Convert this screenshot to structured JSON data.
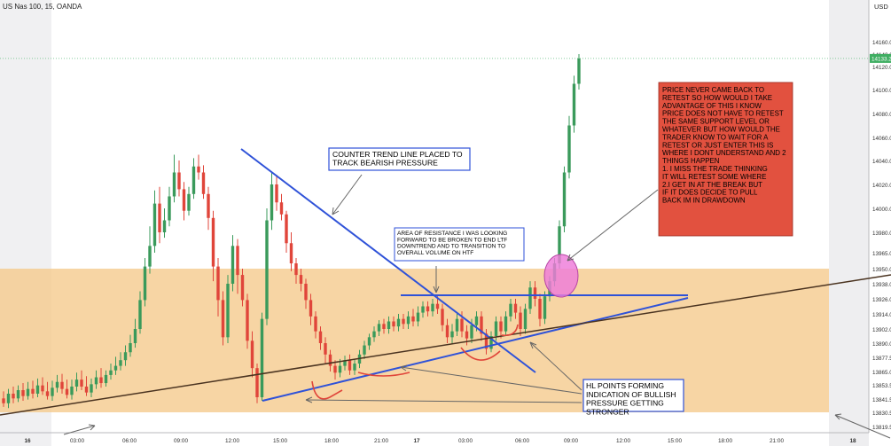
{
  "chart_data": {
    "type": "candlestick",
    "symbol": "US Nas 100, 15, OANDA",
    "currency": "USD",
    "current_price": "14133.2",
    "y_ticks": [
      "14160.0",
      "14140.0",
      "14120.0",
      "14100.0",
      "14080.0",
      "14060.0",
      "14040.0",
      "14020.0",
      "14000.0",
      "13980.0",
      "13965.0",
      "13950.0",
      "13938.0",
      "13926.0",
      "13914.0",
      "13902.0",
      "13890.0",
      "13877.5",
      "13865.0",
      "13853.5",
      "13841.5",
      "13830.5",
      "13819.5"
    ],
    "x_ticks": [
      "16",
      "03:00",
      "06:00",
      "09:00",
      "12:00",
      "15:00",
      "18:00",
      "21:00",
      "17",
      "03:00",
      "06:00",
      "09:00",
      "12:00",
      "15:00",
      "18:00",
      "21:00",
      "18"
    ],
    "candles": [
      [
        13842,
        13838,
        13848,
        13835
      ],
      [
        13838,
        13846,
        13850,
        13834
      ],
      [
        13846,
        13842,
        13852,
        13838
      ],
      [
        13842,
        13849,
        13853,
        13839
      ],
      [
        13849,
        13844,
        13855,
        13840
      ],
      [
        13844,
        13850,
        13856,
        13841
      ],
      [
        13850,
        13846,
        13857,
        13842
      ],
      [
        13846,
        13853,
        13859,
        13843
      ],
      [
        13853,
        13848,
        13860,
        13845
      ],
      [
        13848,
        13844,
        13856,
        13841
      ],
      [
        13844,
        13851,
        13857,
        13840
      ],
      [
        13851,
        13856,
        13862,
        13847
      ],
      [
        13856,
        13850,
        13863,
        13846
      ],
      [
        13850,
        13845,
        13858,
        13842
      ],
      [
        13845,
        13852,
        13858,
        13841
      ],
      [
        13852,
        13858,
        13864,
        13848
      ],
      [
        13858,
        13852,
        13866,
        13849
      ],
      [
        13852,
        13847,
        13861,
        13844
      ],
      [
        13847,
        13854,
        13859,
        13843
      ],
      [
        13854,
        13860,
        13866,
        13850
      ],
      [
        13860,
        13855,
        13868,
        13851
      ],
      [
        13855,
        13862,
        13866,
        13852
      ],
      [
        13862,
        13866,
        13872,
        13858
      ],
      [
        13866,
        13870,
        13878,
        13862
      ],
      [
        13870,
        13875,
        13882,
        13866
      ],
      [
        13875,
        13882,
        13888,
        13870
      ],
      [
        13882,
        13890,
        13897,
        13878
      ],
      [
        13890,
        13902,
        13910,
        13886
      ],
      [
        13902,
        13925,
        13932,
        13898
      ],
      [
        13925,
        13952,
        13960,
        13920
      ],
      [
        13952,
        13970,
        13985,
        13946
      ],
      [
        13970,
        14004,
        14015,
        13965
      ],
      [
        14004,
        13980,
        14018,
        13972
      ],
      [
        13980,
        13990,
        14000,
        13976
      ],
      [
        13990,
        14010,
        14018,
        13985
      ],
      [
        14010,
        14030,
        14045,
        14005
      ],
      [
        14030,
        14016,
        14040,
        14010
      ],
      [
        14016,
        13998,
        14022,
        13990
      ],
      [
        13998,
        14012,
        14018,
        13994
      ],
      [
        14012,
        14035,
        14042,
        14008
      ],
      [
        14035,
        14030,
        14045,
        14024
      ],
      [
        14030,
        14012,
        14036,
        14008
      ],
      [
        14012,
        13992,
        14018,
        13982
      ],
      [
        13992,
        13952,
        13998,
        13940
      ],
      [
        13952,
        13925,
        13960,
        13912
      ],
      [
        13925,
        13895,
        13932,
        13888
      ],
      [
        13895,
        13938,
        13945,
        13890
      ],
      [
        13938,
        13970,
        13978,
        13932
      ],
      [
        13970,
        13945,
        13975,
        13930
      ],
      [
        13945,
        13925,
        13950,
        13920
      ],
      [
        13925,
        13892,
        13930,
        13885
      ],
      [
        13892,
        13868,
        13900,
        13860
      ],
      [
        13868,
        13843,
        13872,
        13838
      ],
      [
        13843,
        13910,
        13915,
        13840
      ],
      [
        13910,
        13990,
        14000,
        13905
      ],
      [
        13990,
        14020,
        14030,
        13982
      ],
      [
        14020,
        14005,
        14028,
        13998
      ],
      [
        14005,
        13995,
        14012,
        13990
      ],
      [
        13995,
        13972,
        13998,
        13965
      ],
      [
        13972,
        13955,
        13980,
        13948
      ],
      [
        13955,
        13945,
        13960,
        13938
      ],
      [
        13945,
        13938,
        13950,
        13932
      ],
      [
        13938,
        13925,
        13942,
        13918
      ],
      [
        13925,
        13912,
        13930,
        13905
      ],
      [
        13912,
        13900,
        13916,
        13894
      ],
      [
        13900,
        13890,
        13904,
        13884
      ],
      [
        13890,
        13880,
        13895,
        13872
      ],
      [
        13880,
        13870,
        13884,
        13865
      ],
      [
        13870,
        13864,
        13875,
        13858
      ],
      [
        13864,
        13870,
        13876,
        13860
      ],
      [
        13870,
        13875,
        13879,
        13866
      ],
      [
        13875,
        13866,
        13880,
        13862
      ],
      [
        13866,
        13872,
        13876,
        13862
      ],
      [
        13872,
        13880,
        13884,
        13868
      ],
      [
        13880,
        13888,
        13892,
        13876
      ],
      [
        13888,
        13895,
        13898,
        13884
      ],
      [
        13895,
        13900,
        13904,
        13891
      ],
      [
        13900,
        13906,
        13909,
        13896
      ],
      [
        13906,
        13902,
        13910,
        13898
      ],
      [
        13902,
        13908,
        13912,
        13898
      ],
      [
        13908,
        13904,
        13912,
        13900
      ],
      [
        13904,
        13910,
        13914,
        13900
      ],
      [
        13910,
        13906,
        13914,
        13902
      ],
      [
        13906,
        13912,
        13916,
        13902
      ],
      [
        13912,
        13908,
        13918,
        13904
      ],
      [
        13908,
        13915,
        13920,
        13904
      ],
      [
        13915,
        13920,
        13924,
        13911
      ],
      [
        13920,
        13916,
        13924,
        13912
      ],
      [
        13916,
        13922,
        13926,
        13912
      ],
      [
        13922,
        13918,
        13928,
        13914
      ],
      [
        13918,
        13905,
        13922,
        13900
      ],
      [
        13905,
        13895,
        13910,
        13890
      ],
      [
        13895,
        13900,
        13906,
        13889
      ],
      [
        13900,
        13910,
        13914,
        13896
      ],
      [
        13910,
        13900,
        13916,
        13895
      ],
      [
        13900,
        13894,
        13905,
        13888
      ],
      [
        13894,
        13905,
        13910,
        13890
      ],
      [
        13905,
        13912,
        13916,
        13900
      ],
      [
        13912,
        13898,
        13916,
        13892
      ],
      [
        13898,
        13885,
        13902,
        13880
      ],
      [
        13885,
        13896,
        13900,
        13882
      ],
      [
        13896,
        13908,
        13912,
        13892
      ],
      [
        13908,
        13900,
        13912,
        13894
      ],
      [
        13900,
        13912,
        13916,
        13896
      ],
      [
        13912,
        13922,
        13926,
        13908
      ],
      [
        13922,
        13915,
        13926,
        13910
      ],
      [
        13915,
        13902,
        13920,
        13896
      ],
      [
        13902,
        13918,
        13922,
        13898
      ],
      [
        13918,
        13935,
        13940,
        13914
      ],
      [
        13935,
        13926,
        13940,
        13920
      ],
      [
        13926,
        13910,
        13930,
        13904
      ],
      [
        13910,
        13928,
        13932,
        13906
      ],
      [
        13928,
        13940,
        13944,
        13924
      ],
      [
        13940,
        13955,
        13960,
        13936
      ],
      [
        13955,
        13985,
        13990,
        13950
      ],
      [
        13985,
        14030,
        14035,
        13980
      ],
      [
        14030,
        14070,
        14078,
        14025
      ],
      [
        14070,
        14105,
        14112,
        14064
      ],
      [
        14105,
        14133,
        14140,
        14100
      ]
    ],
    "levels": [
      {
        "name": "resistance-level",
        "value": 13926
      }
    ],
    "annotations": [
      "COUNTER TREND LINE PLACED TO TRACK BEARISH PRESSURE",
      "AREA OF RESISTANCE I WAS LOOKING FORWARD TO BE BROKEN TO END LTF DOWNTREND AND TO TRANSITION TO OVERALL VOLUME ON HTF",
      "HL POINTS FORMING INDICATION OF BULLISH PRESSURE GETTING STRONGER",
      "PRICE NEVER CAME BACK TO RETEST SO HOW WOULD I TAKE ADVANTAGE OF THIS I KNOW PRICE DOES NOT HAVE TO RETEST THE SAME SUPPORT LEVEL OR WHATEVER BUT HOW WOULD THE TRADER KNOW TO WAIT FOR A RETEST OR JUST ENTER THIS IS WHERE I DONT UNDERSTAND AND 2 THINGS HAPPEN",
      "1. I MISS THE TRADE THINKING IT WILL RETEST SOME WHERE",
      "2.I GET IN AT THE BREAK BUT IF IT DOES DECIDE TO PULL BACK IM IN DRAWDOWN"
    ],
    "colors": {
      "up": "#3a9a5b",
      "down": "#e0453a",
      "zone": "#f5c98a",
      "trendline": "#2f52d8",
      "htf_line": "#4a3320",
      "note_box": "#e2513f",
      "circle": "#e870d2",
      "price_tag": "#3fae62"
    }
  }
}
